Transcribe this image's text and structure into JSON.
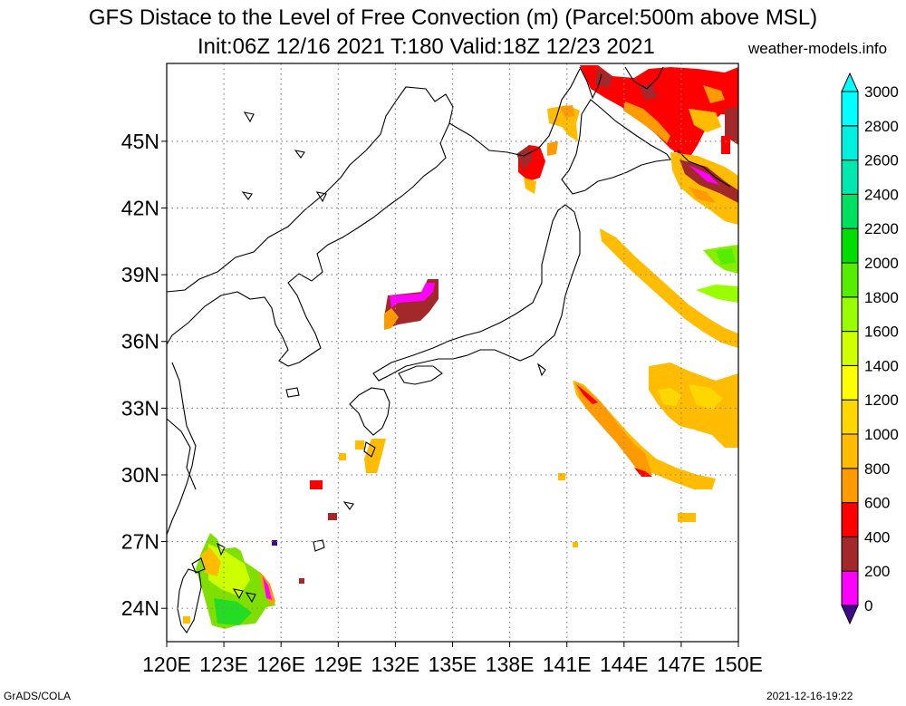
{
  "title_line1": "GFS Distace to the Level of Free Convection (m) (Parcel:500m above MSL)",
  "title_line2": "Init:06Z 12/16 2021 T:180 Valid:18Z 12/23 2021",
  "site": "weather-models.info",
  "footer_left": "GrADS/COLA",
  "footer_right": "2021-12-16-19:22",
  "map": {
    "lon_range": [
      120,
      150
    ],
    "lat_range": [
      22.5,
      48.5
    ],
    "lon_ticks": [
      "120E",
      "123E",
      "126E",
      "129E",
      "132E",
      "135E",
      "138E",
      "141E",
      "144E",
      "147E",
      "150E"
    ],
    "lat_ticks": [
      {
        "lat": 24,
        "label": "24N"
      },
      {
        "lat": 27,
        "label": "27N"
      },
      {
        "lat": 30,
        "label": "30N"
      },
      {
        "lat": 33,
        "label": "33N"
      },
      {
        "lat": 36,
        "label": "36N"
      },
      {
        "lat": 39,
        "label": "39N"
      },
      {
        "lat": 42,
        "label": "42N"
      },
      {
        "lat": 45,
        "label": "45N"
      }
    ],
    "grid": "dotted"
  },
  "colorbar": {
    "levels": [
      "0",
      "200",
      "400",
      "600",
      "800",
      "1000",
      "1200",
      "1400",
      "1600",
      "1800",
      "2000",
      "2200",
      "2400",
      "2600",
      "2800",
      "3000"
    ],
    "colors": [
      "#3d0a8c",
      "#ff00ff",
      "#a3282a",
      "#ff0000",
      "#ff9a00",
      "#ffbc00",
      "#ffd700",
      "#ffff00",
      "#cfff00",
      "#99ff00",
      "#55ee00",
      "#00dd00",
      "#00e060",
      "#00e8b0",
      "#00f0e0",
      "#00ffff"
    ]
  }
}
